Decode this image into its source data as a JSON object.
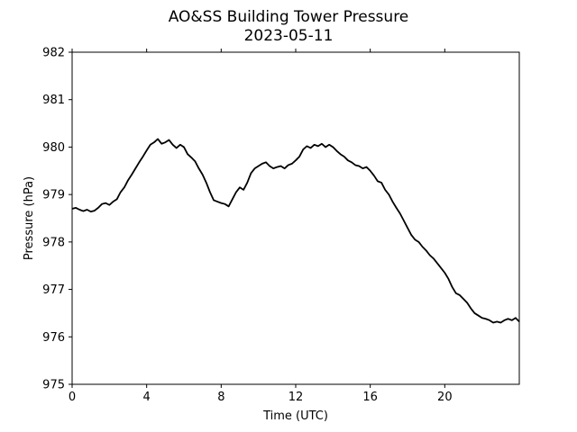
{
  "chart_data": {
    "type": "line",
    "title": "AO&SS Building Tower Pressure",
    "subtitle": "2023-05-11",
    "xlabel": "Time (UTC)",
    "ylabel": "Pressure (hPa)",
    "xlim": [
      0,
      24
    ],
    "ylim": [
      975,
      982
    ],
    "x_ticks": [
      0,
      4,
      8,
      12,
      16,
      20
    ],
    "x_tick_labels": [
      "0",
      "4",
      "8",
      "12",
      "16",
      "20"
    ],
    "y_ticks": [
      975,
      976,
      977,
      978,
      979,
      980,
      981,
      982
    ],
    "y_tick_labels": [
      "975",
      "976",
      "977",
      "978",
      "979",
      "980",
      "981",
      "982"
    ],
    "grid": false,
    "series": [
      {
        "color": "#000000",
        "x": [
          0.0,
          0.2,
          0.4,
          0.6,
          0.8,
          1.0,
          1.2,
          1.4,
          1.6,
          1.8,
          2.0,
          2.2,
          2.4,
          2.6,
          2.8,
          3.0,
          3.2,
          3.4,
          3.6,
          3.8,
          4.0,
          4.2,
          4.4,
          4.6,
          4.8,
          5.0,
          5.2,
          5.4,
          5.6,
          5.8,
          6.0,
          6.2,
          6.4,
          6.6,
          6.8,
          7.0,
          7.2,
          7.4,
          7.6,
          7.8,
          8.0,
          8.2,
          8.4,
          8.6,
          8.8,
          9.0,
          9.2,
          9.4,
          9.6,
          9.8,
          10.0,
          10.2,
          10.4,
          10.6,
          10.8,
          11.0,
          11.2,
          11.4,
          11.6,
          11.8,
          12.0,
          12.2,
          12.4,
          12.6,
          12.8,
          13.0,
          13.2,
          13.4,
          13.6,
          13.8,
          14.0,
          14.2,
          14.4,
          14.6,
          14.8,
          15.0,
          15.2,
          15.4,
          15.6,
          15.8,
          16.0,
          16.2,
          16.4,
          16.6,
          16.8,
          17.0,
          17.2,
          17.4,
          17.6,
          17.8,
          18.0,
          18.2,
          18.4,
          18.6,
          18.8,
          19.0,
          19.2,
          19.4,
          19.6,
          19.8,
          20.0,
          20.2,
          20.4,
          20.6,
          20.8,
          21.0,
          21.2,
          21.4,
          21.6,
          21.8,
          22.0,
          22.2,
          22.4,
          22.6,
          22.8,
          23.0,
          23.2,
          23.4,
          23.6,
          23.8,
          24.0
        ],
        "y": [
          978.7,
          978.72,
          978.68,
          978.65,
          978.68,
          978.64,
          978.66,
          978.72,
          978.8,
          978.82,
          978.78,
          978.85,
          978.9,
          979.05,
          979.15,
          979.3,
          979.42,
          979.55,
          979.68,
          979.8,
          979.93,
          980.05,
          980.1,
          980.17,
          980.07,
          980.1,
          980.15,
          980.05,
          979.98,
          980.05,
          980.0,
          979.85,
          979.78,
          979.7,
          979.55,
          979.42,
          979.25,
          979.05,
          978.88,
          978.85,
          978.82,
          978.8,
          978.75,
          978.9,
          979.05,
          979.15,
          979.1,
          979.25,
          979.45,
          979.55,
          979.6,
          979.65,
          979.68,
          979.6,
          979.55,
          979.58,
          979.6,
          979.55,
          979.62,
          979.65,
          979.72,
          979.8,
          979.95,
          980.02,
          979.98,
          980.05,
          980.02,
          980.07,
          980.0,
          980.05,
          980.0,
          979.92,
          979.85,
          979.8,
          979.72,
          979.68,
          979.62,
          979.6,
          979.55,
          979.58,
          979.5,
          979.4,
          979.28,
          979.25,
          979.1,
          979.0,
          978.85,
          978.72,
          978.6,
          978.45,
          978.3,
          978.15,
          978.05,
          978.0,
          977.9,
          977.82,
          977.72,
          977.65,
          977.55,
          977.45,
          977.35,
          977.22,
          977.05,
          976.92,
          976.88,
          976.8,
          976.72,
          976.6,
          976.5,
          976.45,
          976.4,
          976.38,
          976.35,
          976.3,
          976.32,
          976.3,
          976.35,
          976.38,
          976.35,
          976.4,
          976.32
        ]
      }
    ]
  }
}
